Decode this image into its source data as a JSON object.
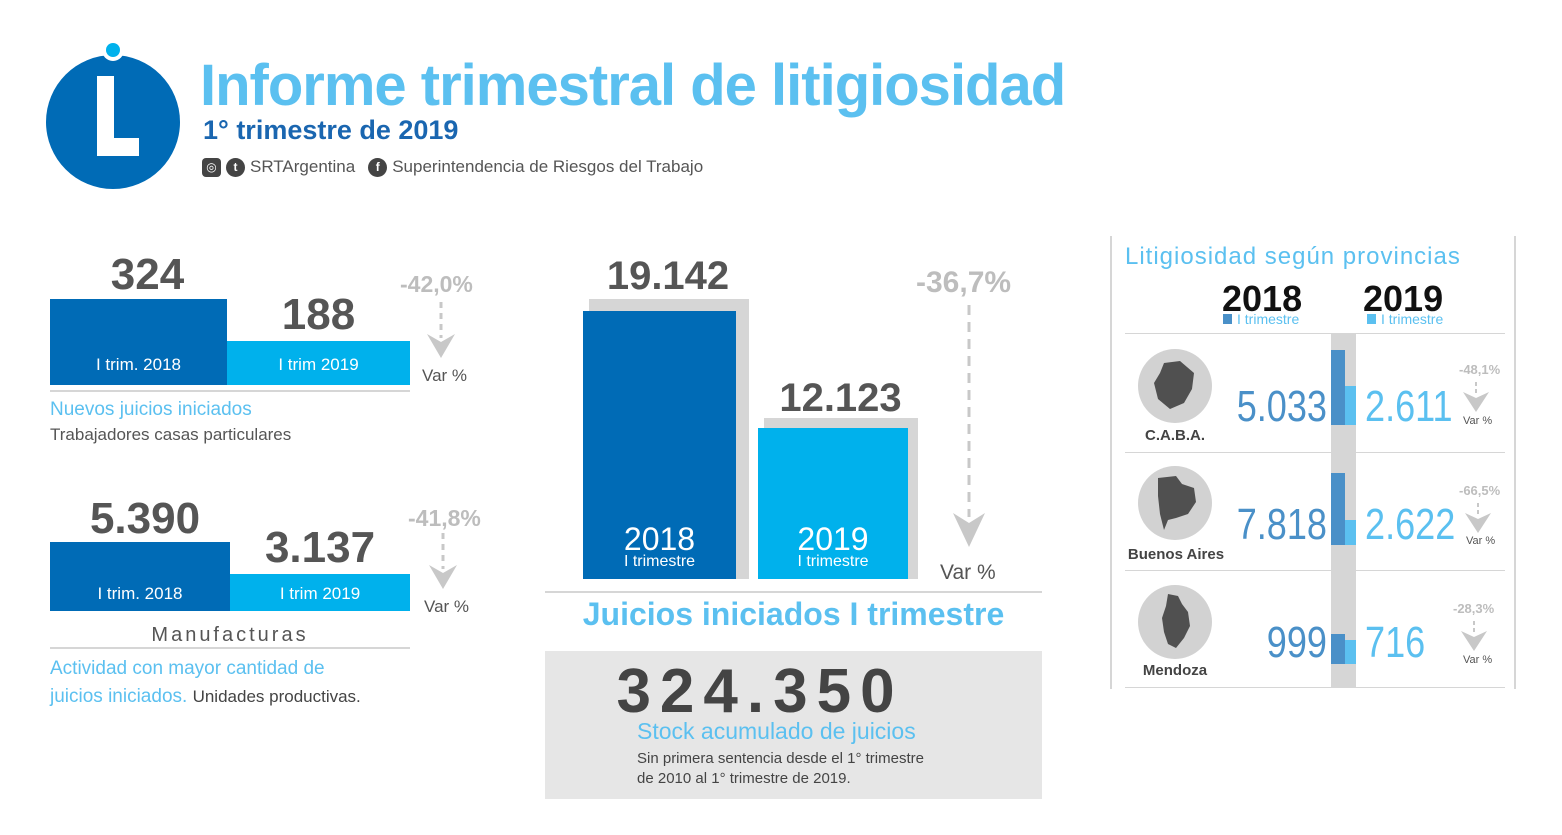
{
  "header": {
    "title": "Informe trimestral de litigiosidad",
    "subtitle": "1° trimestre de 2019",
    "social_handle": "SRTArgentina",
    "facebook_page": "Superintendencia de Riesgos del Trabajo",
    "logo_letter": "L"
  },
  "domestic_workers": {
    "value_2018": "324",
    "value_2019": "188",
    "label_2018": "I trim. 2018",
    "label_2019": "I trim 2019",
    "variation": "-42,0%",
    "var_label": "Var %",
    "caption_title": "Nuevos juicios iniciados",
    "caption_sub": "Trabajadores casas particulares"
  },
  "manufacturing": {
    "value_2018": "5.390",
    "value_2019": "3.137",
    "label_2018": "I trim. 2018",
    "label_2019": "I trim 2019",
    "variation": "-41,8%",
    "var_label": "Var %",
    "sector": "Manufacturas",
    "caption_line1": "Actividad con mayor cantidad de",
    "caption_line2_blue": "juicios iniciados.",
    "caption_line2_dark": "Unidades productivas."
  },
  "main_chart": {
    "value_2018": "19.142",
    "value_2019": "12.123",
    "year_2018": "2018",
    "year_2019": "2019",
    "period": "I trimestre",
    "variation": "-36,7%",
    "var_label": "Var %",
    "caption": "Juicios iniciados I trimestre"
  },
  "stock": {
    "value": "324.350",
    "title": "Stock acumulado de juicios",
    "desc_line1": "Sin primera sentencia desde el 1° trimestre",
    "desc_line2": "de 2010 al  1° trimestre de 2019."
  },
  "provinces": {
    "title": "Litigiosidad según provincias",
    "year_2018": "2018",
    "year_2019": "2019",
    "period": "I trimestre",
    "var_label": "Var %",
    "rows": [
      {
        "name": "C.A.B.A.",
        "v2018": "5.033",
        "v2019": "2.611",
        "variation": "-48,1%"
      },
      {
        "name": "Buenos Aires",
        "v2018": "7.818",
        "v2019": "2.622",
        "variation": "-66,5%"
      },
      {
        "name": "Mendoza",
        "v2018": "999",
        "v2019": "716",
        "variation": "-28,3%"
      }
    ]
  },
  "chart_data": [
    {
      "type": "bar",
      "title": "Nuevos juicios iniciados - Trabajadores casas particulares",
      "categories": [
        "I trim. 2018",
        "I trim 2019"
      ],
      "values": [
        324,
        188
      ],
      "variation_pct": -42.0
    },
    {
      "type": "bar",
      "title": "Manufacturas - Actividad con mayor cantidad de juicios iniciados",
      "categories": [
        "I trim. 2018",
        "I trim 2019"
      ],
      "values": [
        5390,
        3137
      ],
      "variation_pct": -41.8
    },
    {
      "type": "bar",
      "title": "Juicios iniciados I trimestre",
      "categories": [
        "2018",
        "2019"
      ],
      "values": [
        19142,
        12123
      ],
      "variation_pct": -36.7
    },
    {
      "type": "bar",
      "title": "Litigiosidad según provincias",
      "categories": [
        "C.A.B.A.",
        "Buenos Aires",
        "Mendoza"
      ],
      "series": [
        {
          "name": "2018",
          "values": [
            5033,
            7818,
            999
          ]
        },
        {
          "name": "2019",
          "values": [
            2611,
            2622,
            716
          ]
        }
      ],
      "variation_pct": [
        -48.1,
        -66.5,
        -28.3
      ]
    }
  ],
  "colors": {
    "dark_blue": "#006bb6",
    "light_blue": "#00b1ec",
    "title_blue": "#5bc0f0",
    "grey": "#d6d6d6"
  }
}
